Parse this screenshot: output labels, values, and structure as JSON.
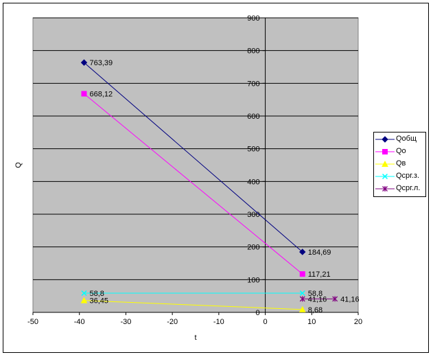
{
  "chart_data": {
    "type": "line",
    "xlabel": "t",
    "ylabel": "Q",
    "xlim": [
      -50,
      20
    ],
    "ylim": [
      0,
      900
    ],
    "xticks": [
      -50,
      -40,
      -30,
      -20,
      -10,
      0,
      10,
      20
    ],
    "yticks": [
      0,
      100,
      200,
      300,
      400,
      500,
      600,
      700,
      800,
      900
    ],
    "grid": true,
    "plot_background": "#c0c0c0",
    "legend_position": "right",
    "series": [
      {
        "name": "Qобщ",
        "color": "#000080",
        "marker": "diamond",
        "points": [
          {
            "x": -39,
            "y": 763.39,
            "label": "763,39"
          },
          {
            "x": 8,
            "y": 184.69,
            "label": "184,69"
          }
        ]
      },
      {
        "name": "Qо",
        "color": "#ff00ff",
        "marker": "square",
        "points": [
          {
            "x": -39,
            "y": 668.12,
            "label": "668,12"
          },
          {
            "x": 8,
            "y": 117.21,
            "label": "117,21"
          }
        ]
      },
      {
        "name": "Qв",
        "color": "#ffff00",
        "marker": "triangle",
        "points": [
          {
            "x": -39,
            "y": 36.45,
            "label": "36,45"
          },
          {
            "x": 8,
            "y": 8.68,
            "label": "8,68"
          }
        ]
      },
      {
        "name": "Qсрг.з.",
        "color": "#00ffff",
        "marker": "x",
        "points": [
          {
            "x": -39,
            "y": 58.8,
            "label": "58,8"
          },
          {
            "x": 8,
            "y": 58.8,
            "label": "58,8"
          }
        ]
      },
      {
        "name": "Qсрг.л.",
        "color": "#800080",
        "marker": "star",
        "points": [
          {
            "x": 8,
            "y": 41.16,
            "label": "41,16"
          },
          {
            "x": 15,
            "y": 41.16,
            "label": "41,16"
          }
        ]
      }
    ]
  }
}
